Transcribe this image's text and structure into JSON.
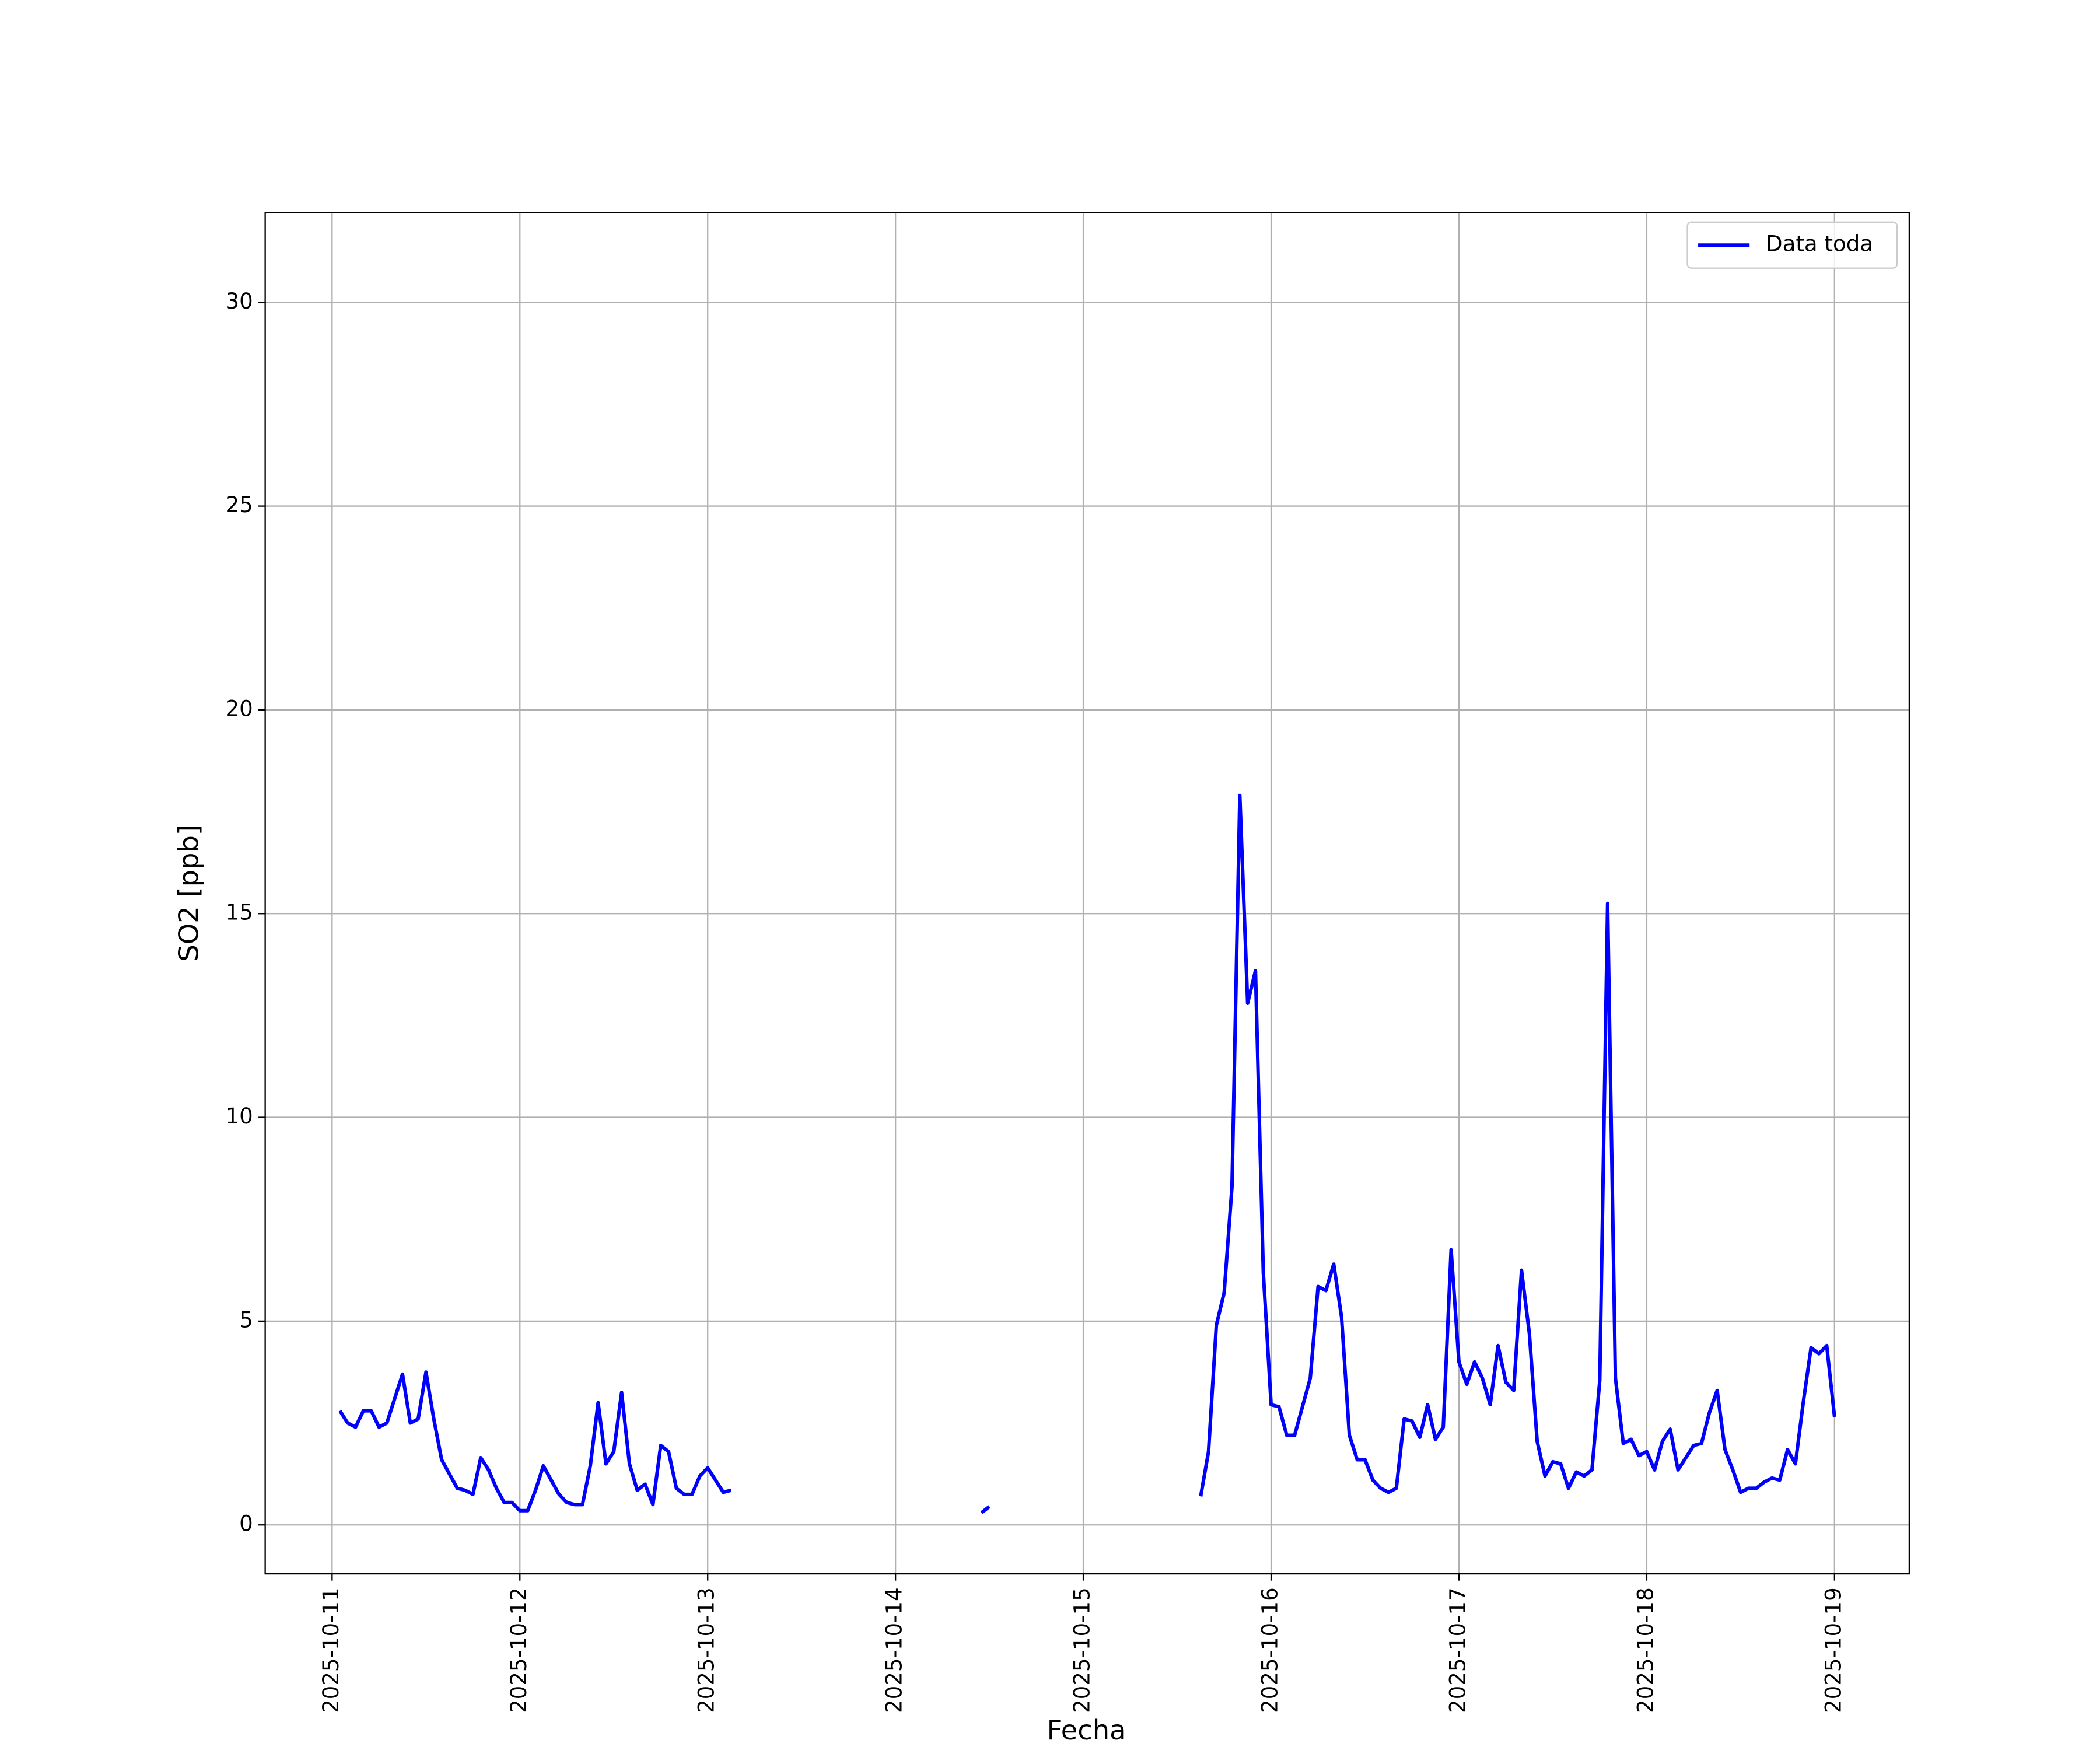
{
  "chart_data": {
    "type": "line",
    "xlabel": "Fecha",
    "ylabel": "SO2 [ppb]",
    "x": [
      "2025-10-11 01:00",
      "2025-10-11 02:00",
      "2025-10-11 03:00",
      "2025-10-11 04:00",
      "2025-10-11 05:00",
      "2025-10-11 06:00",
      "2025-10-11 07:00",
      "2025-10-11 08:00",
      "2025-10-11 09:00",
      "2025-10-11 10:00",
      "2025-10-11 11:00",
      "2025-10-11 12:00",
      "2025-10-11 13:00",
      "2025-10-11 14:00",
      "2025-10-11 15:00",
      "2025-10-11 16:00",
      "2025-10-11 17:00",
      "2025-10-11 18:00",
      "2025-10-11 19:00",
      "2025-10-11 20:00",
      "2025-10-11 21:00",
      "2025-10-11 22:00",
      "2025-10-11 23:00",
      "2025-10-12 00:00",
      "2025-10-12 01:00",
      "2025-10-12 02:00",
      "2025-10-12 03:00",
      "2025-10-12 04:00",
      "2025-10-12 05:00",
      "2025-10-12 06:00",
      "2025-10-12 07:00",
      "2025-10-12 08:00",
      "2025-10-12 09:00",
      "2025-10-12 10:00",
      "2025-10-12 11:00",
      "2025-10-12 12:00",
      "2025-10-12 13:00",
      "2025-10-12 14:00",
      "2025-10-12 15:00",
      "2025-10-12 16:00",
      "2025-10-12 17:00",
      "2025-10-12 18:00",
      "2025-10-12 19:00",
      "2025-10-12 20:00",
      "2025-10-12 21:00",
      "2025-10-12 22:00",
      "2025-10-12 23:00",
      "2025-10-13 00:00",
      "2025-10-13 01:00",
      "2025-10-13 02:00",
      "2025-10-13 03:00",
      "2025-10-13 04:00",
      "2025-10-13 05:00",
      "2025-10-13 06:00",
      "2025-10-13 07:00",
      "2025-10-13 08:00",
      "2025-10-13 09:00",
      "2025-10-13 10:00",
      "2025-10-13 11:00",
      "2025-10-13 12:00",
      "2025-10-13 13:00",
      "2025-10-13 14:00",
      "2025-10-13 15:00",
      "2025-10-13 16:00",
      "2025-10-13 17:00",
      "2025-10-13 18:00",
      "2025-10-13 19:00",
      "2025-10-13 20:00",
      "2025-10-13 21:00",
      "2025-10-13 22:00",
      "2025-10-13 23:00",
      "2025-10-14 00:00",
      "2025-10-14 01:00",
      "2025-10-14 02:00",
      "2025-10-14 03:00",
      "2025-10-14 04:00",
      "2025-10-14 05:00",
      "2025-10-14 06:00",
      "2025-10-14 07:00",
      "2025-10-14 08:00",
      "2025-10-14 09:00",
      "2025-10-14 10:00",
      "2025-10-14 11:00",
      "2025-10-14 12:00",
      "2025-10-14 13:00",
      "2025-10-14 14:00",
      "2025-10-14 15:00",
      "2025-10-14 16:00",
      "2025-10-14 17:00",
      "2025-10-14 18:00",
      "2025-10-14 19:00",
      "2025-10-14 20:00",
      "2025-10-14 21:00",
      "2025-10-14 22:00",
      "2025-10-14 23:00",
      "2025-10-15 00:00",
      "2025-10-15 01:00",
      "2025-10-15 02:00",
      "2025-10-15 03:00",
      "2025-10-15 04:00",
      "2025-10-15 05:00",
      "2025-10-15 06:00",
      "2025-10-15 07:00",
      "2025-10-15 08:00",
      "2025-10-15 09:00",
      "2025-10-15 10:00",
      "2025-10-15 11:00",
      "2025-10-15 12:00",
      "2025-10-15 13:00",
      "2025-10-15 14:00",
      "2025-10-15 15:00",
      "2025-10-15 16:00",
      "2025-10-15 17:00",
      "2025-10-15 18:00",
      "2025-10-15 19:00",
      "2025-10-15 20:00",
      "2025-10-15 21:00",
      "2025-10-15 22:00",
      "2025-10-15 23:00",
      "2025-10-16 00:00",
      "2025-10-16 01:00",
      "2025-10-16 02:00",
      "2025-10-16 03:00",
      "2025-10-16 04:00",
      "2025-10-16 05:00",
      "2025-10-16 06:00",
      "2025-10-16 07:00",
      "2025-10-16 08:00",
      "2025-10-16 09:00",
      "2025-10-16 10:00",
      "2025-10-16 11:00",
      "2025-10-16 12:00",
      "2025-10-16 13:00",
      "2025-10-16 14:00",
      "2025-10-16 15:00",
      "2025-10-16 16:00",
      "2025-10-16 17:00",
      "2025-10-16 18:00",
      "2025-10-16 19:00",
      "2025-10-16 20:00",
      "2025-10-16 21:00",
      "2025-10-16 22:00",
      "2025-10-16 23:00",
      "2025-10-17 00:00",
      "2025-10-17 01:00",
      "2025-10-17 02:00",
      "2025-10-17 03:00",
      "2025-10-17 04:00",
      "2025-10-17 05:00",
      "2025-10-17 06:00",
      "2025-10-17 07:00",
      "2025-10-17 08:00",
      "2025-10-17 09:00",
      "2025-10-17 10:00",
      "2025-10-17 11:00",
      "2025-10-17 12:00",
      "2025-10-17 13:00",
      "2025-10-17 14:00",
      "2025-10-17 15:00",
      "2025-10-17 16:00",
      "2025-10-17 17:00",
      "2025-10-17 18:00",
      "2025-10-17 19:00",
      "2025-10-17 20:00",
      "2025-10-17 21:00",
      "2025-10-17 22:00",
      "2025-10-17 23:00",
      "2025-10-18 00:00",
      "2025-10-18 01:00",
      "2025-10-18 02:00",
      "2025-10-18 03:00",
      "2025-10-18 04:00",
      "2025-10-18 05:00",
      "2025-10-18 06:00",
      "2025-10-18 07:00",
      "2025-10-18 08:00",
      "2025-10-18 09:00",
      "2025-10-18 10:00",
      "2025-10-18 11:00",
      "2025-10-18 12:00",
      "2025-10-18 13:00",
      "2025-10-18 14:00",
      "2025-10-18 15:00",
      "2025-10-18 16:00",
      "2025-10-18 17:00",
      "2025-10-18 18:00",
      "2025-10-18 19:00",
      "2025-10-18 20:00",
      "2025-10-18 21:00",
      "2025-10-18 22:00",
      "2025-10-18 23:00",
      "2025-10-19 00:00"
    ],
    "series": [
      {
        "name": "Data toda",
        "color": "#0000ff",
        "values": [
          2.8,
          2.5,
          2.4,
          2.8,
          2.8,
          2.4,
          2.5,
          3.1,
          3.7,
          2.5,
          2.6,
          3.75,
          2.6,
          1.6,
          1.25,
          0.9,
          0.85,
          0.75,
          1.65,
          1.35,
          0.9,
          0.55,
          0.55,
          0.35,
          0.35,
          0.85,
          1.45,
          1.1,
          0.75,
          0.55,
          0.5,
          0.5,
          1.45,
          3.0,
          1.5,
          1.8,
          3.25,
          1.5,
          0.85,
          1.0,
          0.5,
          1.95,
          1.8,
          0.9,
          0.75,
          0.75,
          1.2,
          1.4,
          1.1,
          0.8,
          0.85,
          null,
          null,
          null,
          null,
          null,
          null,
          null,
          null,
          null,
          null,
          null,
          null,
          null,
          null,
          null,
          null,
          null,
          null,
          null,
          null,
          null,
          null,
          null,
          null,
          null,
          null,
          null,
          null,
          null,
          null,
          null,
          0.3,
          0.45,
          null,
          null,
          null,
          null,
          null,
          null,
          null,
          null,
          null,
          null,
          null,
          null,
          null,
          null,
          null,
          null,
          null,
          null,
          null,
          null,
          null,
          null,
          null,
          null,
          null,
          null,
          0.7,
          1.8,
          4.9,
          5.7,
          8.3,
          17.9,
          12.8,
          13.6,
          6.2,
          2.95,
          2.9,
          2.2,
          2.2,
          2.9,
          3.6,
          5.85,
          5.75,
          6.4,
          5.1,
          2.2,
          1.6,
          1.6,
          1.1,
          0.9,
          0.8,
          0.9,
          2.6,
          2.55,
          2.15,
          2.95,
          2.1,
          2.4,
          6.75,
          4.0,
          3.45,
          4.0,
          3.6,
          2.95,
          4.4,
          3.5,
          3.3,
          6.25,
          4.7,
          2.05,
          1.2,
          1.55,
          1.5,
          0.9,
          1.3,
          1.2,
          1.35,
          3.55,
          15.25,
          3.6,
          2.0,
          2.1,
          1.7,
          1.8,
          1.35,
          2.05,
          2.35,
          1.35,
          1.65,
          1.95,
          2.0,
          2.75,
          3.3,
          1.85,
          1.35,
          0.8,
          0.9,
          0.9,
          1.05,
          1.15,
          1.1,
          1.85,
          1.5,
          3.0,
          4.35,
          4.2,
          4.4,
          2.65
        ]
      }
    ],
    "xlim": [
      "2025-10-10 15:27",
      "2025-10-19 09:33"
    ],
    "xticks": [
      "2025-10-11",
      "2025-10-12",
      "2025-10-13",
      "2025-10-14",
      "2025-10-15",
      "2025-10-16",
      "2025-10-17",
      "2025-10-18",
      "2025-10-19"
    ],
    "ylim": [
      -1.2,
      32.2
    ],
    "yticks": [
      0,
      5,
      10,
      15,
      20,
      25,
      30
    ],
    "grid": true,
    "legend": "upper right"
  }
}
